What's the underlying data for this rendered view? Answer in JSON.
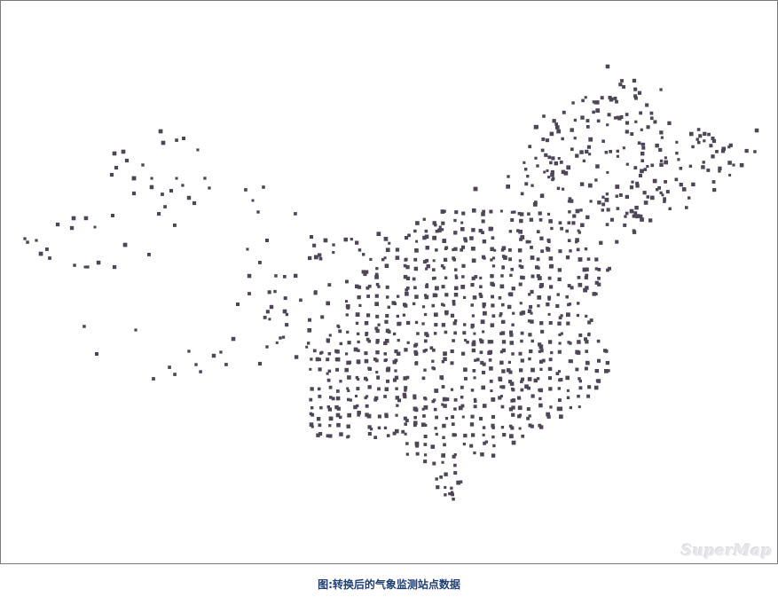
{
  "caption": "图:转换后的气象监测站点数据",
  "watermark": "SuperMap",
  "colors": {
    "station": "#4e4657",
    "frame": "#7a7a7a",
    "caption": "#1f3f74",
    "background": "#ffffff"
  },
  "layer": {
    "feature_type": "point",
    "symbol": "station-dot-icon"
  }
}
